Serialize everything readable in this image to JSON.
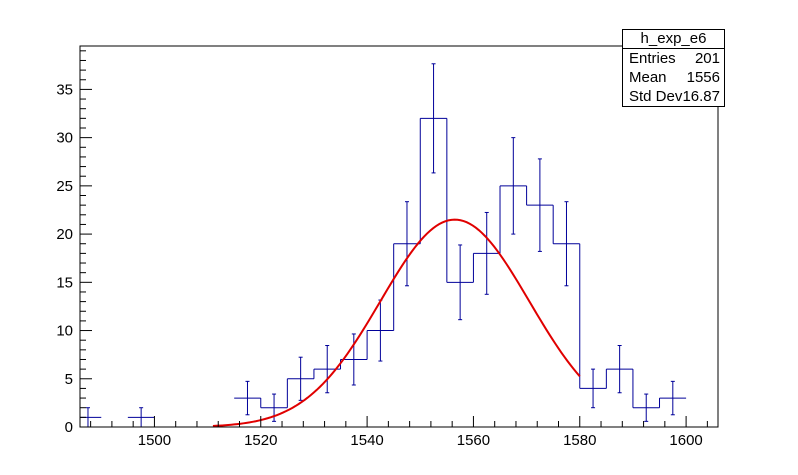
{
  "chart_data": {
    "type": "histogram",
    "xlim": [
      1486,
      1606
    ],
    "ylim": [
      0,
      39.5
    ],
    "bin_width": 5,
    "x_ticks": [
      1500,
      1520,
      1540,
      1560,
      1580,
      1600
    ],
    "y_ticks": [
      0,
      5,
      10,
      15,
      20,
      25,
      30,
      35
    ],
    "bins": [
      {
        "lo": 1485,
        "hi": 1490,
        "count": 1
      },
      {
        "lo": 1495,
        "hi": 1500,
        "count": 1
      },
      {
        "lo": 1515,
        "hi": 1520,
        "count": 3
      },
      {
        "lo": 1520,
        "hi": 1525,
        "count": 2
      },
      {
        "lo": 1525,
        "hi": 1530,
        "count": 5
      },
      {
        "lo": 1530,
        "hi": 1535,
        "count": 6
      },
      {
        "lo": 1535,
        "hi": 1540,
        "count": 7
      },
      {
        "lo": 1540,
        "hi": 1545,
        "count": 10
      },
      {
        "lo": 1545,
        "hi": 1550,
        "count": 19
      },
      {
        "lo": 1550,
        "hi": 1555,
        "count": 32
      },
      {
        "lo": 1555,
        "hi": 1560,
        "count": 15
      },
      {
        "lo": 1560,
        "hi": 1565,
        "count": 18
      },
      {
        "lo": 1565,
        "hi": 1570,
        "count": 25
      },
      {
        "lo": 1570,
        "hi": 1575,
        "count": 23
      },
      {
        "lo": 1575,
        "hi": 1580,
        "count": 19
      },
      {
        "lo": 1580,
        "hi": 1585,
        "count": 4
      },
      {
        "lo": 1585,
        "hi": 1590,
        "count": 6
      },
      {
        "lo": 1590,
        "hi": 1595,
        "count": 2
      },
      {
        "lo": 1595,
        "hi": 1600,
        "count": 3
      }
    ],
    "fit": {
      "type": "gaussian",
      "amplitude": 21.5,
      "mean": 1556.5,
      "sigma": 14,
      "x_range": [
        1511,
        1580
      ],
      "color": "#e00000"
    },
    "histogram_color": "#000099",
    "grid": false,
    "legend": "top-right"
  },
  "stats": {
    "title": "h_exp_e6",
    "rows": [
      {
        "label": "Entries",
        "value": "201"
      },
      {
        "label": "Mean",
        "value": "1556"
      },
      {
        "label": "Std Dev",
        "value": "16.87"
      }
    ]
  }
}
